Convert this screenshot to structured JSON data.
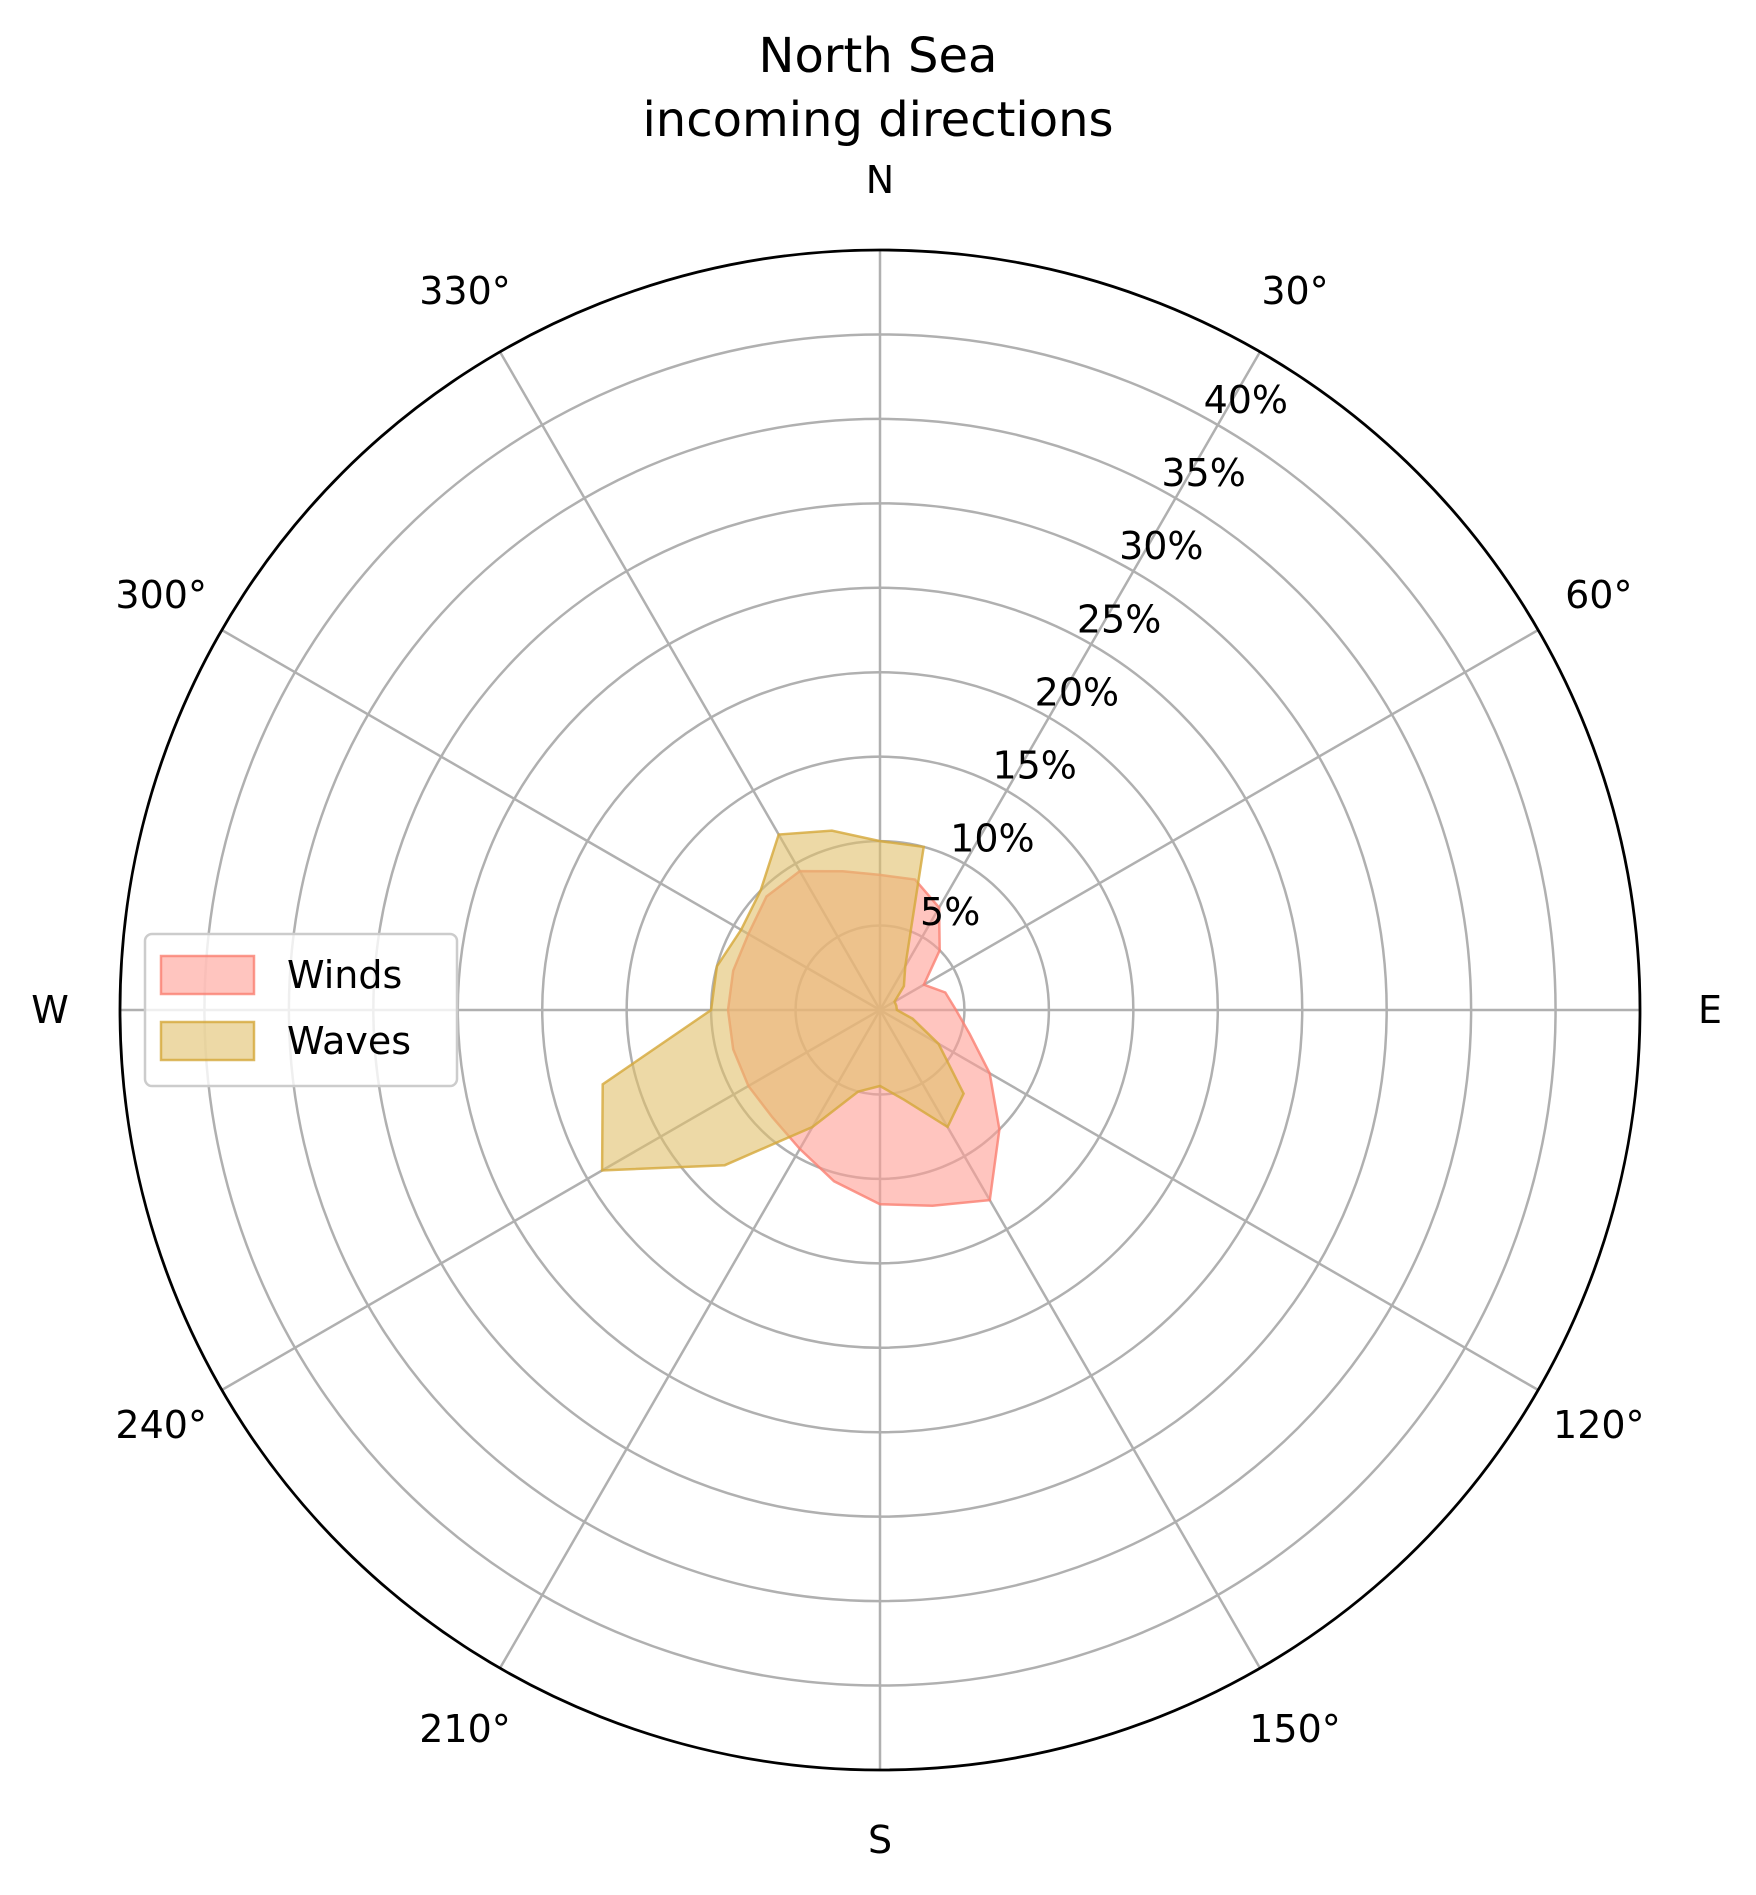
{
  "chart_data": {
    "type": "polar-area",
    "title": "North Sea\nincoming directions",
    "title_lines": [
      "North Sea",
      "incoming directions"
    ],
    "theta_direction": "clockwise",
    "theta_zero": "N",
    "angle_ticks": [
      {
        "angle": 0,
        "label": "N"
      },
      {
        "angle": 30,
        "label": "30°"
      },
      {
        "angle": 60,
        "label": "60°"
      },
      {
        "angle": 90,
        "label": "E"
      },
      {
        "angle": 120,
        "label": "120°"
      },
      {
        "angle": 150,
        "label": "150°"
      },
      {
        "angle": 180,
        "label": "S"
      },
      {
        "angle": 210,
        "label": "210°"
      },
      {
        "angle": 240,
        "label": "240°"
      },
      {
        "angle": 270,
        "label": "W"
      },
      {
        "angle": 300,
        "label": "300°"
      },
      {
        "angle": 330,
        "label": "330°"
      }
    ],
    "radial_ticks": [
      5,
      10,
      15,
      20,
      25,
      30,
      35,
      40
    ],
    "radial_tick_labels": [
      "5%",
      "10%",
      "15%",
      "20%",
      "25%",
      "30%",
      "35%",
      "40%"
    ],
    "radial_label_angle": 30,
    "rlim": [
      0,
      45
    ],
    "grid": true,
    "legend_position": "center-left",
    "categories": [
      0,
      15,
      30,
      45,
      60,
      75,
      90,
      105,
      120,
      135,
      150,
      165,
      180,
      195,
      210,
      225,
      240,
      255,
      270,
      285,
      300,
      315,
      330,
      345
    ],
    "series": [
      {
        "name": "Winds",
        "color": "#ff9e94",
        "stroke": "#fa8072",
        "opacity": 0.6,
        "values": [
          8,
          8,
          7,
          5,
          3,
          4,
          4.5,
          5.5,
          7.5,
          10,
          13,
          12,
          11.5,
          10.5,
          9.5,
          9,
          9,
          9,
          9,
          9,
          9,
          9.5,
          9.5,
          8.5
        ]
      },
      {
        "name": "Waves",
        "color": "#e1c06a",
        "stroke": "#d4a73a",
        "opacity": 0.6,
        "values": [
          10,
          10,
          3,
          2,
          1,
          1,
          1,
          2,
          4,
          7,
          8,
          5.5,
          4.5,
          5,
          8,
          13,
          19,
          17,
          10,
          10,
          9.5,
          10,
          12,
          11
        ]
      }
    ]
  }
}
